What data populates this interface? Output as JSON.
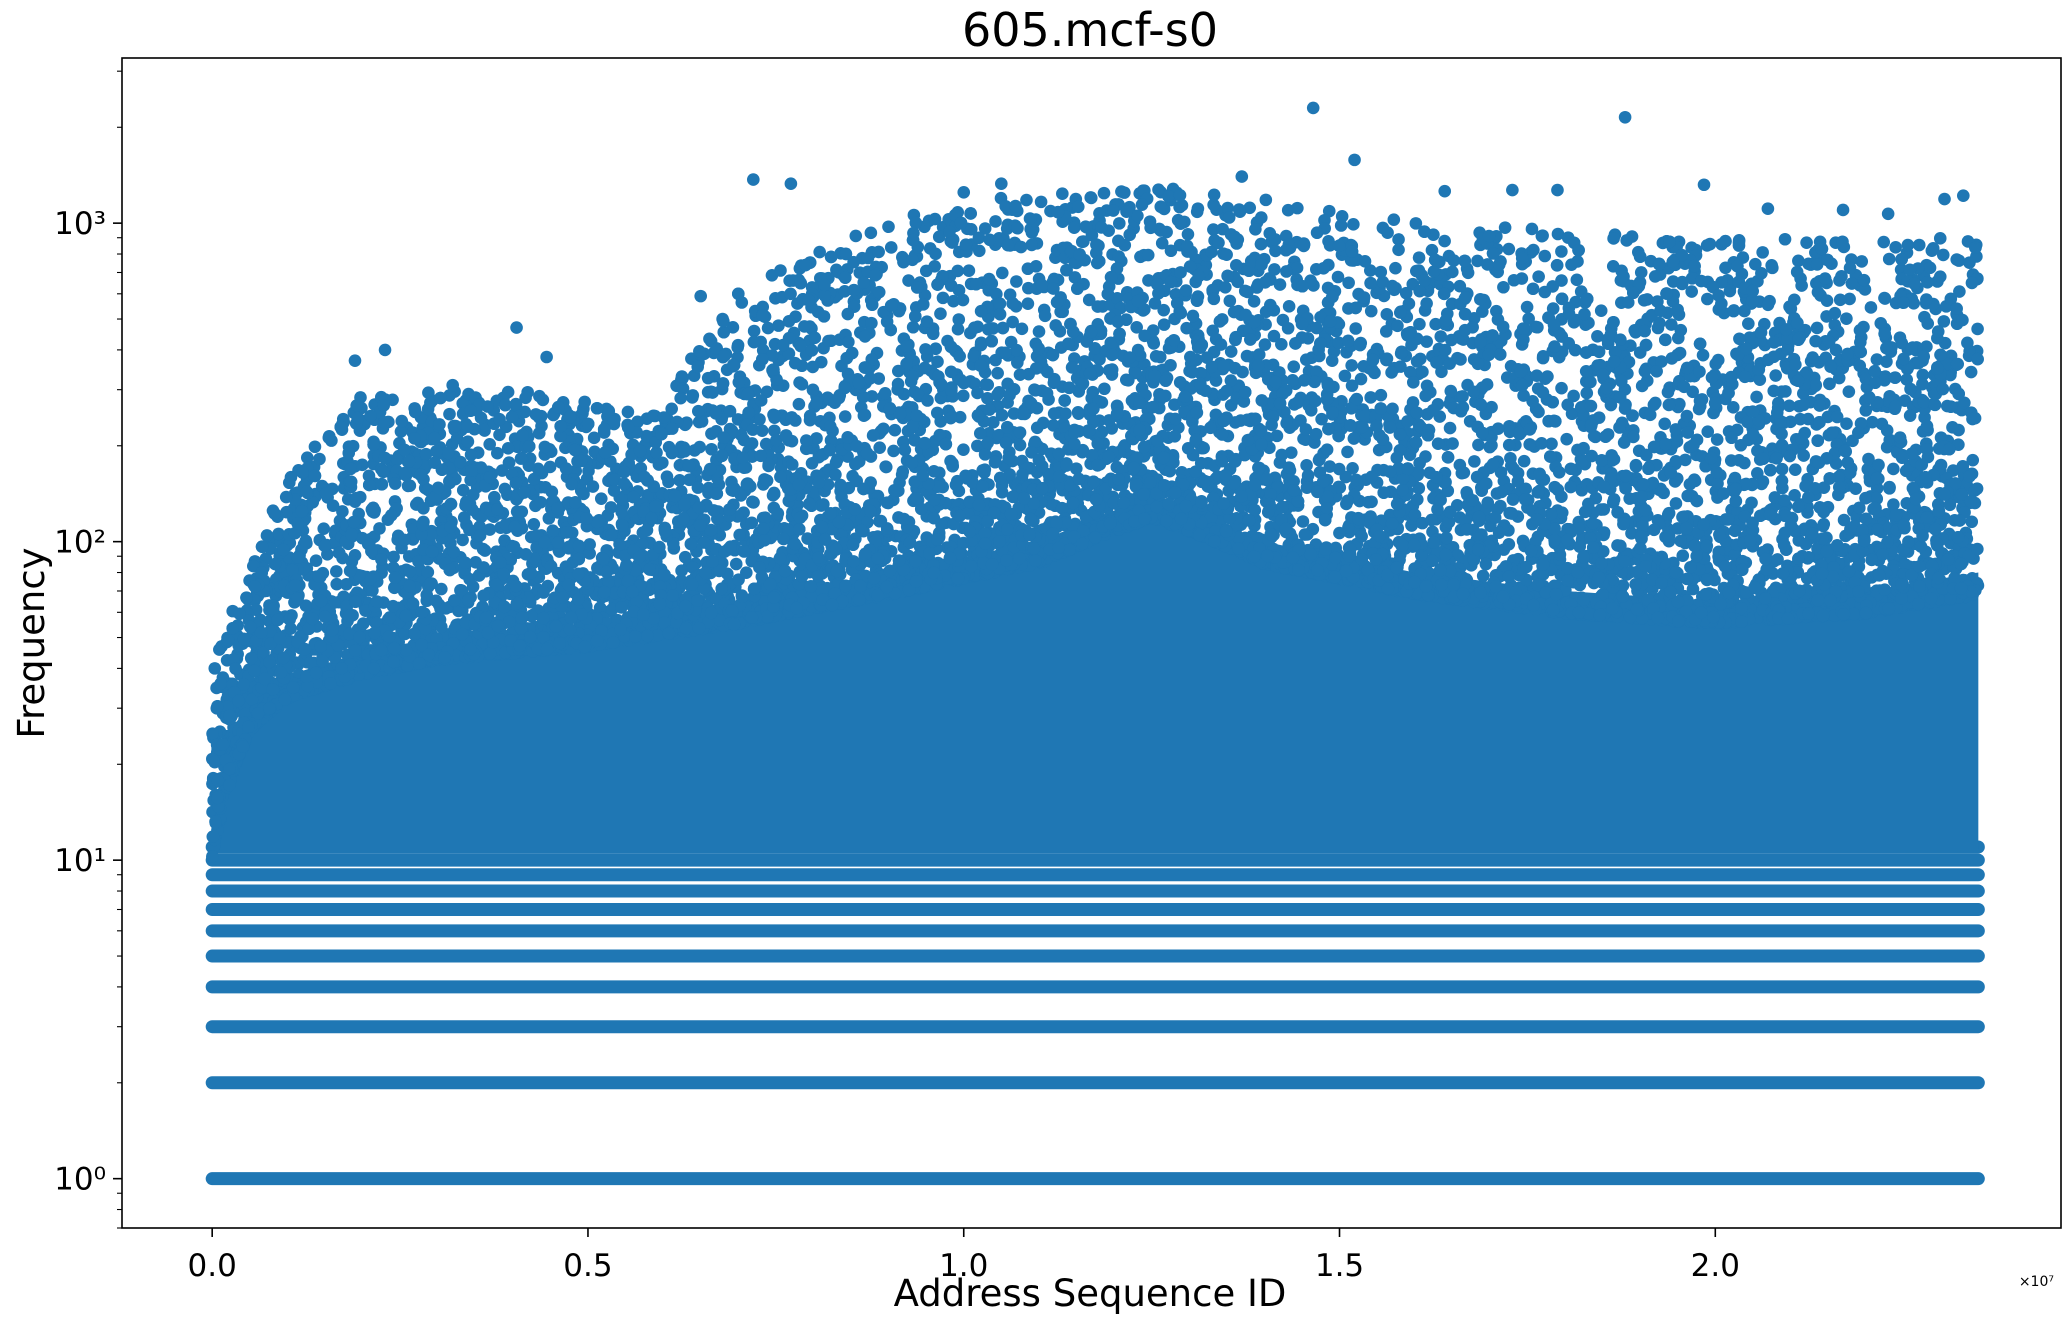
{
  "chart_data": {
    "type": "scatter",
    "title": "605.mcf-s0",
    "xlabel": "Address Sequence ID",
    "ylabel": "Frequency",
    "x_offset_label": "×10⁷",
    "x_scale": "linear",
    "y_scale": "log",
    "xlim": [
      -1200000,
      24600000
    ],
    "ylim": [
      0.7,
      3300
    ],
    "x_ticks": [
      {
        "value": 0,
        "label": "0.0"
      },
      {
        "value": 5000000,
        "label": "0.5"
      },
      {
        "value": 10000000,
        "label": "1.0"
      },
      {
        "value": 15000000,
        "label": "1.5"
      },
      {
        "value": 20000000,
        "label": "2.0"
      }
    ],
    "y_ticks": [
      {
        "value": 1,
        "label": "10⁰"
      },
      {
        "value": 10,
        "label": "10¹"
      },
      {
        "value": 100,
        "label": "10²"
      },
      {
        "value": 1000,
        "label": "10³"
      }
    ],
    "grid": false,
    "legend": "none",
    "color": "#1f77b4",
    "x_range": [
      0,
      23500000
    ],
    "frequency_bands": [
      1,
      2,
      3,
      4,
      5,
      6,
      7,
      8,
      9,
      10,
      11
    ],
    "dense_region_upper_envelope": [
      [
        0,
        12
      ],
      [
        500000,
        30
      ],
      [
        1000000,
        38
      ],
      [
        2000000,
        45
      ],
      [
        3000000,
        50
      ],
      [
        5000000,
        55
      ],
      [
        7000000,
        65
      ],
      [
        9000000,
        80
      ],
      [
        11000000,
        100
      ],
      [
        12500000,
        140
      ],
      [
        14000000,
        100
      ],
      [
        16000000,
        80
      ],
      [
        18000000,
        70
      ],
      [
        20000000,
        65
      ],
      [
        22000000,
        70
      ],
      [
        23500000,
        80
      ]
    ],
    "sparse_region_upper_envelope": [
      [
        0,
        40
      ],
      [
        500000,
        80
      ],
      [
        2000000,
        300
      ],
      [
        4000000,
        300
      ],
      [
        6000000,
        250
      ],
      [
        7000000,
        600
      ],
      [
        10000000,
        1200
      ],
      [
        13000000,
        1300
      ],
      [
        16000000,
        1000
      ],
      [
        20000000,
        900
      ],
      [
        23500000,
        900
      ]
    ],
    "outliers": [
      {
        "x": 14650000,
        "y": 2300
      },
      {
        "x": 18800000,
        "y": 2150
      },
      {
        "x": 15200000,
        "y": 1580
      },
      {
        "x": 13700000,
        "y": 1400
      },
      {
        "x": 7200000,
        "y": 1370
      },
      {
        "x": 7700000,
        "y": 1330
      },
      {
        "x": 10500000,
        "y": 1330
      },
      {
        "x": 19850000,
        "y": 1320
      },
      {
        "x": 10000000,
        "y": 1250
      },
      {
        "x": 17300000,
        "y": 1270
      },
      {
        "x": 17900000,
        "y": 1270
      },
      {
        "x": 16400000,
        "y": 1260
      },
      {
        "x": 23300000,
        "y": 1220
      },
      {
        "x": 23050000,
        "y": 1190
      },
      {
        "x": 20700000,
        "y": 1110
      },
      {
        "x": 21700000,
        "y": 1100
      },
      {
        "x": 22300000,
        "y": 1070
      },
      {
        "x": 4050000,
        "y": 470
      },
      {
        "x": 2300000,
        "y": 400
      },
      {
        "x": 1900000,
        "y": 370
      },
      {
        "x": 4450000,
        "y": 380
      },
      {
        "x": 6500000,
        "y": 590
      },
      {
        "x": 6250000,
        "y": 330
      },
      {
        "x": 3200000,
        "y": 310
      }
    ]
  }
}
